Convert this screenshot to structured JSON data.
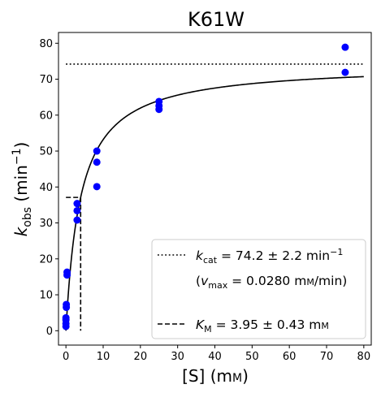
{
  "chart_data": {
    "type": "scatter",
    "title": "K61W",
    "xlabel": "[S] (mм)",
    "ylabel": "k_obs (min⁻¹)",
    "xlim": [
      -2,
      82
    ],
    "ylim": [
      -4,
      83
    ],
    "x_ticks": [
      0,
      10,
      20,
      30,
      40,
      50,
      60,
      70,
      80
    ],
    "y_ticks": [
      0,
      10,
      20,
      30,
      40,
      50,
      60,
      70,
      80
    ],
    "grid": false,
    "legend_placement": "lower-right",
    "colors": {
      "points": "#0000ff",
      "lines": "#000000"
    },
    "points": [
      {
        "x": 0.0,
        "y": 1.2
      },
      {
        "x": 0.0,
        "y": 2.0
      },
      {
        "x": 0.0,
        "y": 3.0
      },
      {
        "x": 0.0,
        "y": 3.6
      },
      {
        "x": 0.1,
        "y": 6.5
      },
      {
        "x": 0.1,
        "y": 7.3
      },
      {
        "x": 0.3,
        "y": 15.5
      },
      {
        "x": 0.3,
        "y": 16.3
      },
      {
        "x": 3.0,
        "y": 30.8
      },
      {
        "x": 3.0,
        "y": 33.4
      },
      {
        "x": 3.0,
        "y": 35.4
      },
      {
        "x": 8.3,
        "y": 40.1
      },
      {
        "x": 8.3,
        "y": 46.9
      },
      {
        "x": 8.3,
        "y": 50.0
      },
      {
        "x": 25.0,
        "y": 61.6
      },
      {
        "x": 25.0,
        "y": 62.6
      },
      {
        "x": 25.0,
        "y": 63.8
      },
      {
        "x": 75.0,
        "y": 71.9
      },
      {
        "x": 75.0,
        "y": 78.9
      }
    ],
    "fit": {
      "kcat": 74.2,
      "km": 3.95,
      "x_range": [
        0,
        80
      ]
    },
    "kcat_line": {
      "y": 74.2,
      "x_range": [
        0,
        80
      ]
    },
    "km_line": {
      "x": 3.95,
      "half_y": 37.1,
      "x_start": 0
    },
    "legend": {
      "kcat_label": "k_cat = 74.2 ± 2.2 min⁻¹",
      "vmax_label": "(v_max = 0.0280 mм/min)",
      "km_label": "K_M = 3.95 ± 0.43 mм"
    }
  }
}
